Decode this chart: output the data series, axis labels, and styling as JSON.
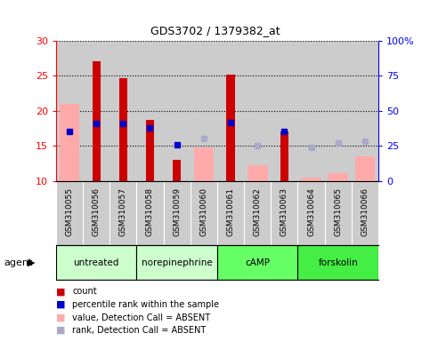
{
  "title": "GDS3702 / 1379382_at",
  "samples": [
    "GSM310055",
    "GSM310056",
    "GSM310057",
    "GSM310058",
    "GSM310059",
    "GSM310060",
    "GSM310061",
    "GSM310062",
    "GSM310063",
    "GSM310064",
    "GSM310065",
    "GSM310066"
  ],
  "count_values": [
    null,
    27.1,
    24.7,
    18.7,
    13.0,
    null,
    25.2,
    null,
    17.0,
    null,
    null,
    null
  ],
  "count_absent": [
    21.0,
    null,
    null,
    null,
    null,
    14.8,
    null,
    12.2,
    null,
    10.5,
    11.1,
    13.5
  ],
  "rank_values": [
    17.0,
    18.2,
    18.2,
    17.5,
    15.2,
    null,
    18.3,
    null,
    17.1,
    null,
    null,
    null
  ],
  "rank_absent": [
    null,
    null,
    null,
    null,
    null,
    16.0,
    null,
    15.0,
    null,
    14.8,
    15.4,
    15.6
  ],
  "ylim": [
    10,
    30
  ],
  "yticks_left": [
    10,
    15,
    20,
    25,
    30
  ],
  "right_labels": [
    "0",
    "25",
    "50",
    "75",
    "100%"
  ],
  "count_color": "#cc0000",
  "rank_color": "#0000cc",
  "absent_value_color": "#ffaaaa",
  "absent_rank_color": "#aaaacc",
  "bar_width": 0.5,
  "plot_bg": "#cccccc",
  "grey_label_bg": "#cccccc",
  "agent_colors": [
    "#ccffcc",
    "#ccffcc",
    "#66ff66",
    "#44ee44"
  ],
  "agent_labels": [
    "untreated",
    "norepinephrine",
    "cAMP",
    "forskolin"
  ],
  "agent_starts": [
    0,
    3,
    6,
    9
  ],
  "agent_ends": [
    3,
    6,
    9,
    12
  ]
}
